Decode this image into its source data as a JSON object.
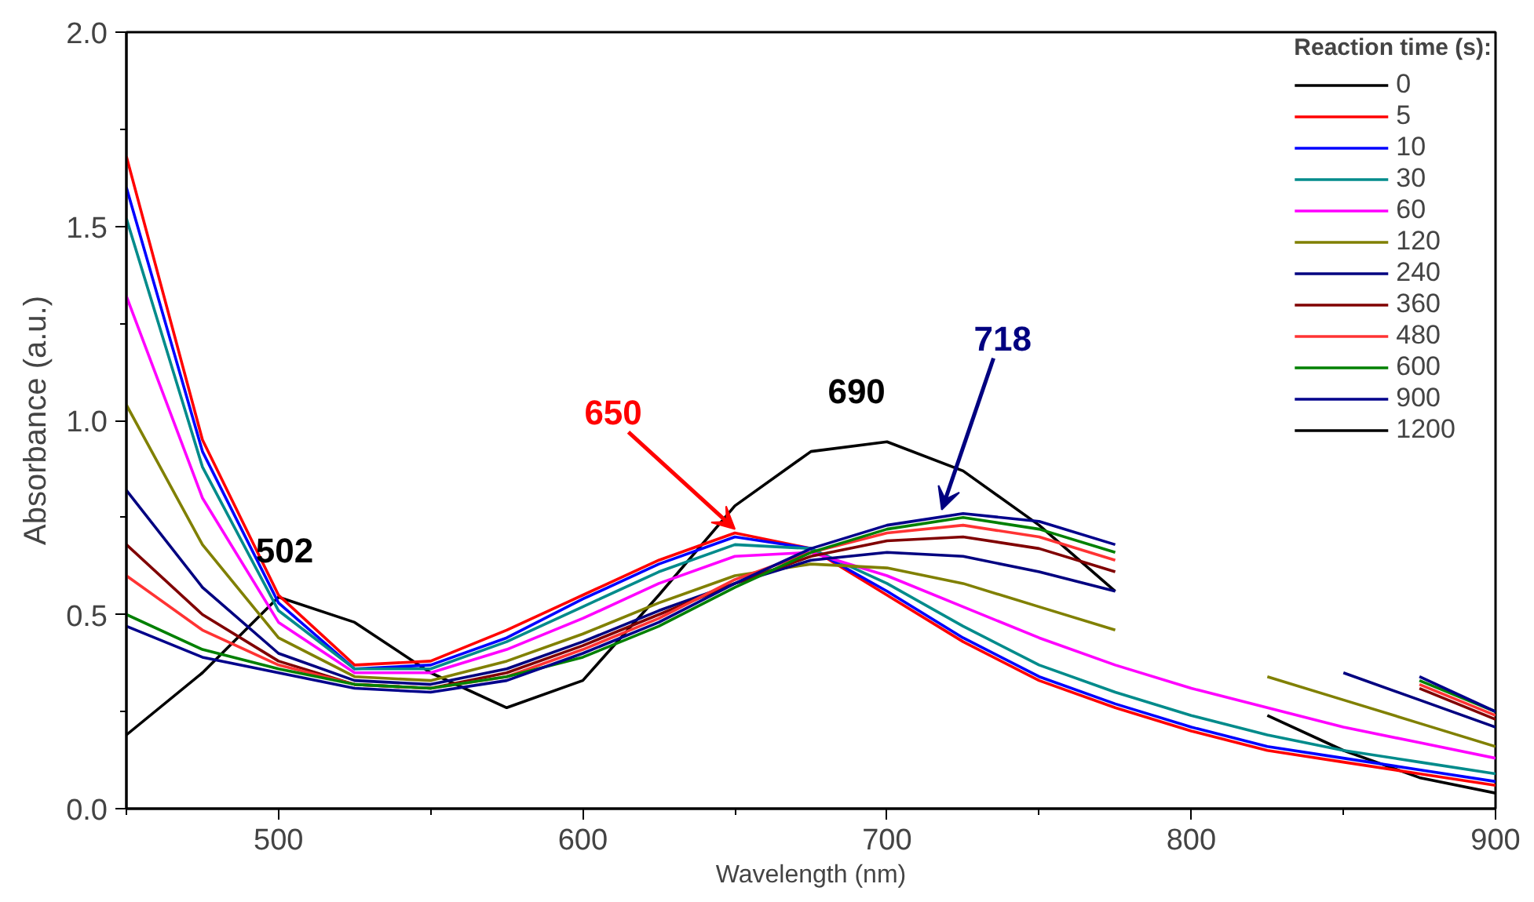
{
  "chart_data": {
    "type": "line",
    "xlabel": "Wavelength (nm)",
    "ylabel": "Absorbance (a.u.)",
    "legend_title": "Reaction time (s):",
    "legend": "top right",
    "grid": false,
    "marker": "none",
    "line_style": "solid",
    "xlim": [
      450,
      900
    ],
    "xticks": [
      500,
      600,
      700,
      800,
      900
    ],
    "ylim": [
      0,
      2
    ],
    "yticks": [
      {
        "value": 0,
        "label": "0.0"
      },
      0.5,
      {
        "value": 1,
        "label": "1.0"
      },
      1.5,
      {
        "value": 2,
        "label": "2.0"
      }
    ],
    "x": [
      450,
      475,
      500,
      525,
      550,
      575,
      600,
      625,
      650,
      675,
      700,
      725,
      750,
      775,
      800,
      825,
      850,
      875,
      900
    ],
    "series": [
      {
        "name": "0",
        "color": "#000000",
        "values": [
          0.19,
          0.35,
          0.545,
          0.48,
          0.35,
          0.26,
          0.33,
          0.55,
          0.78,
          0.92,
          0.945,
          0.87,
          0.73,
          0.56,
          null,
          0.24,
          0.15,
          0.08,
          0.04
        ]
      },
      {
        "name": "5",
        "color": "#ff0000",
        "values": [
          1.68,
          0.95,
          0.55,
          0.37,
          0.38,
          0.46,
          0.55,
          0.64,
          0.71,
          0.67,
          0.55,
          0.43,
          0.33,
          0.26,
          0.2,
          0.15,
          0.12,
          0.09,
          0.06
        ]
      },
      {
        "name": "10",
        "color": "#0000ff",
        "values": [
          1.6,
          0.92,
          0.53,
          0.36,
          0.37,
          0.44,
          0.54,
          0.63,
          0.7,
          0.67,
          0.56,
          0.44,
          0.34,
          0.27,
          0.21,
          0.16,
          0.13,
          0.1,
          0.07
        ]
      },
      {
        "name": "30",
        "color": "#008b8b",
        "values": [
          1.52,
          0.88,
          0.51,
          0.36,
          0.36,
          0.43,
          0.52,
          0.61,
          0.68,
          0.67,
          0.58,
          0.47,
          0.37,
          0.3,
          0.24,
          0.19,
          0.15,
          0.12,
          0.09
        ]
      },
      {
        "name": "60",
        "color": "#ff00ff",
        "values": [
          1.32,
          0.8,
          0.48,
          0.35,
          0.35,
          0.41,
          0.49,
          0.58,
          0.65,
          0.66,
          0.6,
          0.52,
          0.44,
          0.37,
          0.31,
          0.26,
          0.21,
          0.17,
          0.13
        ]
      },
      {
        "name": "120",
        "color": "#808000",
        "values": [
          1.04,
          0.68,
          0.44,
          0.34,
          0.33,
          0.38,
          0.45,
          0.53,
          0.6,
          0.63,
          0.62,
          0.58,
          0.52,
          0.46,
          null,
          0.34,
          0.28,
          0.22,
          0.16
        ]
      },
      {
        "name": "240",
        "color": "#000080",
        "values": [
          0.82,
          0.57,
          0.4,
          0.33,
          0.32,
          0.36,
          0.43,
          0.51,
          0.58,
          0.64,
          0.66,
          0.65,
          0.61,
          0.56,
          null,
          null,
          0.35,
          0.28,
          0.21
        ]
      },
      {
        "name": "360",
        "color": "#800000",
        "values": [
          0.68,
          0.5,
          0.38,
          0.32,
          0.31,
          0.35,
          0.42,
          0.5,
          0.58,
          0.65,
          0.69,
          0.7,
          0.67,
          0.61,
          null,
          null,
          null,
          0.31,
          0.23
        ]
      },
      {
        "name": "480",
        "color": "#ff3333",
        "values": [
          0.6,
          0.46,
          0.37,
          0.32,
          0.31,
          0.34,
          0.41,
          0.49,
          0.59,
          0.66,
          0.71,
          0.73,
          0.7,
          0.64,
          null,
          null,
          null,
          0.32,
          0.24
        ]
      },
      {
        "name": "600",
        "color": "#008000",
        "values": [
          0.5,
          0.41,
          0.36,
          0.32,
          0.31,
          0.34,
          0.39,
          0.47,
          0.57,
          0.66,
          0.72,
          0.75,
          0.72,
          0.66,
          null,
          null,
          null,
          0.33,
          0.25
        ]
      },
      {
        "name": "900",
        "color": "#00008b",
        "values": [
          0.47,
          0.39,
          0.35,
          0.31,
          0.3,
          0.33,
          0.4,
          0.48,
          0.58,
          0.67,
          0.73,
          0.76,
          0.74,
          0.68,
          null,
          null,
          null,
          0.34,
          0.25
        ]
      },
      {
        "name": "1200",
        "color": "#000000",
        "values": [
          null,
          null,
          null,
          null,
          null,
          null,
          null,
          null,
          null,
          null,
          null,
          null,
          null,
          null,
          null,
          null,
          null,
          null,
          null
        ]
      }
    ],
    "annotations": [
      {
        "text": "502",
        "x": 502,
        "y": 0.545
      },
      {
        "text": "650",
        "x": 650,
        "y": 0.71
      },
      {
        "text": "690",
        "x": 690,
        "y": 0.955
      },
      {
        "text": "718",
        "x": 718,
        "y": 0.76
      }
    ]
  }
}
